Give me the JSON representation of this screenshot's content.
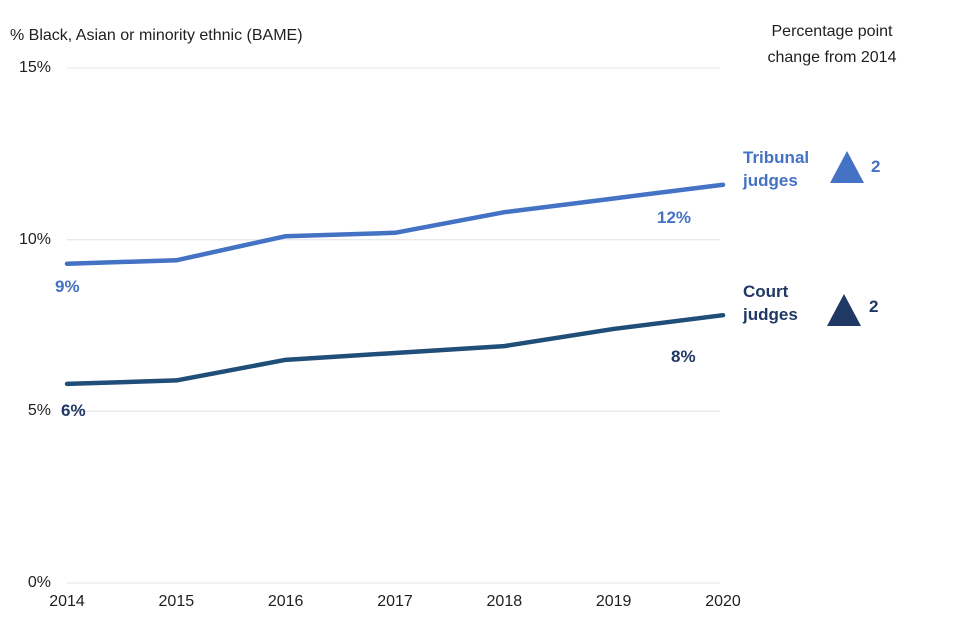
{
  "chart_data": {
    "type": "line",
    "title": "% Black, Asian or minority ethnic (BAME)",
    "right_header": "Percentage point\nchange from 2014",
    "x": [
      "2014",
      "2015",
      "2016",
      "2017",
      "2018",
      "2019",
      "2020"
    ],
    "ylim": [
      0,
      15
    ],
    "yticks": [
      {
        "value": 0,
        "label": "0%"
      },
      {
        "value": 5,
        "label": "5%"
      },
      {
        "value": 10,
        "label": "10%"
      },
      {
        "value": 15,
        "label": "15%"
      }
    ],
    "grid": "horizontal",
    "legend_position": "right",
    "gridline_color": "#e9e9e9",
    "series": [
      {
        "name": "Tribunal judges",
        "label": "Tribunal\njudges",
        "color": "#4472C4",
        "label_color": "#4472C4",
        "triangle_color": "#4472C4",
        "values": [
          9.3,
          9.4,
          10.1,
          10.2,
          10.8,
          11.2,
          11.6
        ],
        "start_label": "9%",
        "end_label": "12%",
        "change_from_2014": "2",
        "change_direction": "up"
      },
      {
        "name": "Court judges",
        "label": "Court\njudges",
        "color": "#1F4E79",
        "label_color": "#1F3864",
        "triangle_color": "#1F3864",
        "values": [
          5.8,
          5.9,
          6.5,
          6.7,
          6.9,
          7.4,
          7.8
        ],
        "start_label": "6%",
        "end_label": "8%",
        "change_from_2014": "2",
        "change_direction": "up"
      }
    ]
  }
}
